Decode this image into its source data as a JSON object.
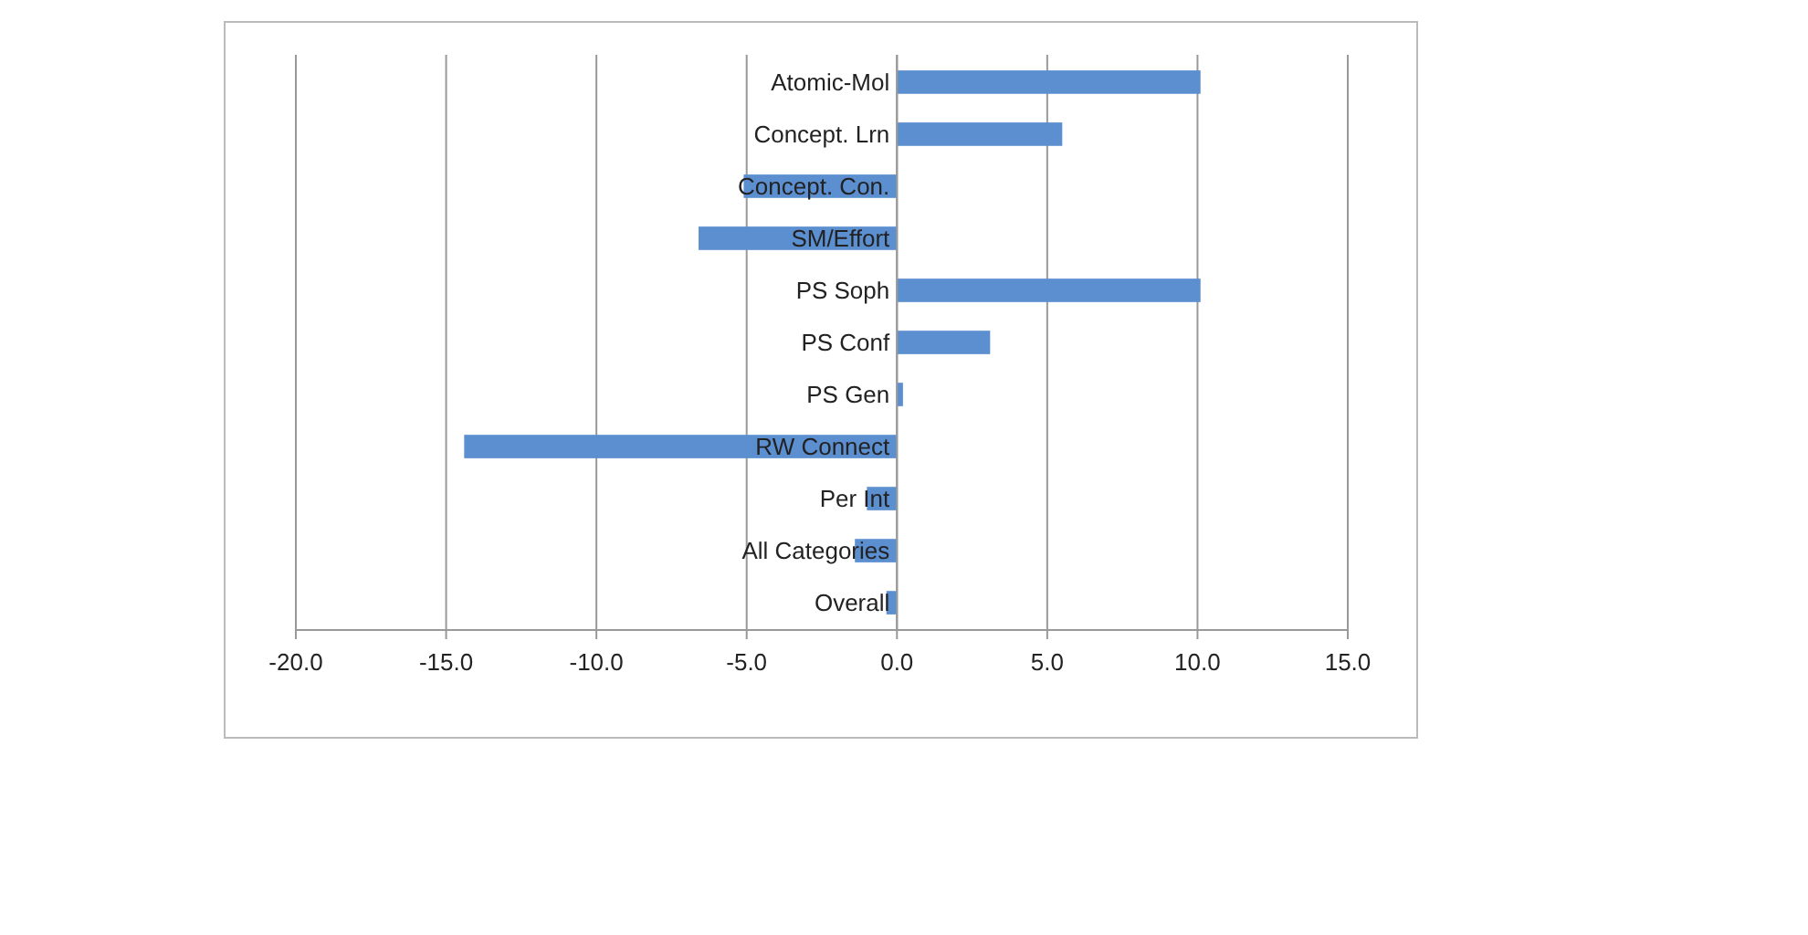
{
  "chart_data": {
    "type": "bar",
    "orientation": "horizontal",
    "categories": [
      "Atomic-Mol",
      "Concept. Lrn",
      "Concept. Con.",
      "SM/Effort",
      "PS Soph",
      "PS Conf",
      "PS Gen",
      "RW Connect",
      "Per Int",
      "All Categories",
      "Overall"
    ],
    "values": [
      10.1,
      5.5,
      -5.1,
      -6.6,
      10.1,
      3.1,
      0.2,
      -14.4,
      -1.0,
      -1.4,
      -0.35
    ],
    "color": "#5b8fd0",
    "xlim": [
      -20,
      15
    ],
    "xticks": [
      {
        "value": -20,
        "label": "-20.0"
      },
      {
        "value": -15,
        "label": "-15.0"
      },
      {
        "value": -10,
        "label": "-10.0"
      },
      {
        "value": -5,
        "label": "-5.0"
      },
      {
        "value": 0,
        "label": "0.0"
      },
      {
        "value": 5,
        "label": "5.0"
      },
      {
        "value": 10,
        "label": "10.0"
      },
      {
        "value": 15,
        "label": "15.0"
      }
    ],
    "grid": "x"
  }
}
